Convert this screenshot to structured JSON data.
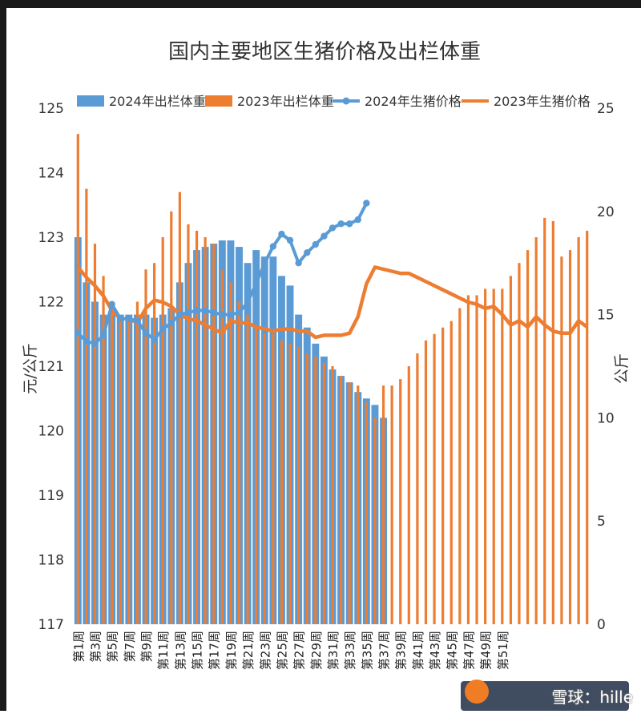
{
  "chart_data": {
    "type": "bar",
    "title": "国内主要地区生猪价格及出栏体重",
    "ylabel": "元/公斤",
    "y2label": "公斤",
    "ylim": [
      117,
      125
    ],
    "y2lim": [
      0,
      25
    ],
    "yticks": [
      "125",
      "124",
      "123",
      "122",
      "121",
      "120",
      "119",
      "118",
      "117"
    ],
    "y2ticks": [
      "25",
      "20",
      "15",
      "10",
      "5",
      "0"
    ],
    "x_tick_labels": [
      "第1周",
      "第3周",
      "第5周",
      "第7周",
      "第9周",
      "第11周",
      "第13周",
      "第15周",
      "第17周",
      "第19周",
      "第21周",
      "第23周",
      "第25周",
      "第27周",
      "第29周",
      "第31周",
      "第33周",
      "第35周",
      "第37周",
      "第39周",
      "第41周",
      "第43周",
      "第45周",
      "第47周",
      "第49周",
      "第51周"
    ],
    "legend": {
      "position": "top",
      "items": [
        {
          "label": "2024年出栏体重",
          "color": "#5b9bd5",
          "kind": "bar"
        },
        {
          "label": "2023年出栏体重",
          "color": "#ed7d31",
          "kind": "bar"
        },
        {
          "label": "2024年生猪价格",
          "color": "#5b9bd5",
          "kind": "line-marker"
        },
        {
          "label": "2023年生猪价格",
          "color": "#ed7d31",
          "kind": "line"
        }
      ]
    },
    "series": [
      {
        "name": "2024年出栏体重",
        "axis": "left",
        "values": [
          123.0,
          122.3,
          122.0,
          121.8,
          121.8,
          121.8,
          121.8,
          121.8,
          121.8,
          121.75,
          121.8,
          121.9,
          122.3,
          122.6,
          122.8,
          122.85,
          122.9,
          122.95,
          122.95,
          122.85,
          122.6,
          122.8,
          122.7,
          122.7,
          122.4,
          122.25,
          121.8,
          121.6,
          121.35,
          121.15,
          120.95,
          120.85,
          120.75,
          120.6,
          120.5,
          120.4,
          120.2
        ]
      },
      {
        "name": "2023年出栏体重",
        "axis": "left",
        "values": [
          124.6,
          123.75,
          122.9,
          122.4,
          121.9,
          121.7,
          121.7,
          122.0,
          122.5,
          122.6,
          123.0,
          123.4,
          123.7,
          123.2,
          123.1,
          123.0,
          122.9,
          122.5,
          122.3,
          122.0,
          121.8,
          121.6,
          121.5,
          121.5,
          121.4,
          121.35,
          121.3,
          121.2,
          121.15,
          121.05,
          121.0,
          120.85,
          120.75,
          120.7,
          120.45,
          120.2,
          120.7,
          120.7,
          120.8,
          121.0,
          121.2,
          121.4,
          121.5,
          121.6,
          121.7,
          121.9,
          122.1,
          122.1,
          122.2,
          122.2,
          122.2,
          122.4,
          122.6,
          122.8,
          123.0,
          123.3,
          123.25,
          122.7,
          122.8,
          123.0,
          123.1
        ]
      },
      {
        "name": "2024年生猪价格",
        "axis": "right",
        "values": [
          14.1,
          13.7,
          13.6,
          14.0,
          15.5,
          14.8,
          14.8,
          14.7,
          14.1,
          13.8,
          14.3,
          14.6,
          15.0,
          15.1,
          15.2,
          15.2,
          15.1,
          15.0,
          15.0,
          15.1,
          15.6,
          16.5,
          17.5,
          18.3,
          18.9,
          18.6,
          17.5,
          18.0,
          18.4,
          18.8,
          19.2,
          19.4,
          19.4,
          19.6,
          20.4
        ]
      },
      {
        "name": "2023年生猪价格",
        "axis": "right",
        "values": [
          17.3,
          16.8,
          16.4,
          15.9,
          15.2,
          14.8,
          14.8,
          14.6,
          15.3,
          15.7,
          15.6,
          15.4,
          15.0,
          14.8,
          14.7,
          14.5,
          14.3,
          14.1,
          14.7,
          14.6,
          14.6,
          14.4,
          14.3,
          14.2,
          14.3,
          14.3,
          14.2,
          14.2,
          13.9,
          14.0,
          14.0,
          14.0,
          14.1,
          14.9,
          16.5,
          17.3,
          17.2,
          17.1,
          17.0,
          17.0,
          16.8,
          16.6,
          16.4,
          16.2,
          16.0,
          15.8,
          15.6,
          15.5,
          15.3,
          15.4,
          15.0,
          14.5,
          14.7,
          14.4,
          14.9,
          14.5,
          14.2,
          14.1,
          14.1,
          14.7,
          14.4
        ]
      }
    ],
    "grid": false
  },
  "watermark": {
    "text": "雪球：hille"
  }
}
